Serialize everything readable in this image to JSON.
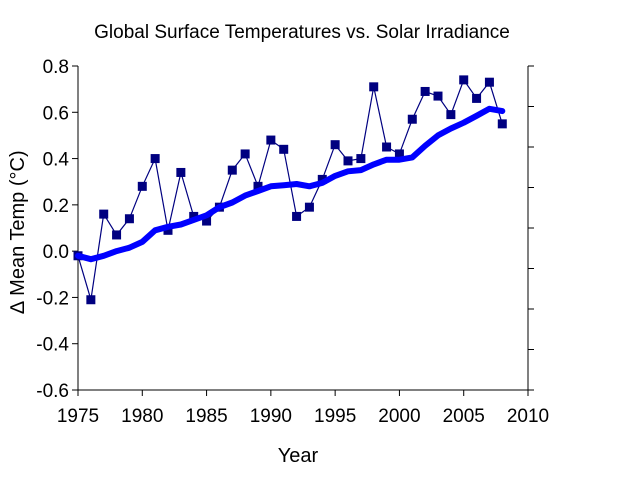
{
  "chart_data": {
    "type": "line",
    "title": "Global Surface Temperatures vs. Solar Irradiance",
    "xlabel": "Year",
    "ylabel": "∆ Mean Temp (°C)",
    "xlim": [
      1975,
      2010
    ],
    "ylim": [
      -0.6,
      0.8
    ],
    "x_ticks": [
      1975,
      1980,
      1985,
      1990,
      1995,
      2000,
      2005,
      2010
    ],
    "y_ticks": [
      -0.6,
      -0.4,
      -0.2,
      0.0,
      0.2,
      0.4,
      0.6,
      0.8
    ],
    "x_tick_labels": [
      "1975",
      "1980",
      "1985",
      "1990",
      "1995",
      "2000",
      "2005",
      "2010"
    ],
    "y_tick_labels": [
      "-0.6",
      "-0.4",
      "-0.2",
      "0.0",
      "0.2",
      "0.4",
      "0.6",
      "0.8"
    ],
    "right_axis_ticks": 9,
    "grid": false,
    "legend": "none",
    "series": [
      {
        "style": "line-with-square-markers",
        "color": "#000080",
        "x": [
          1975,
          1976,
          1977,
          1978,
          1979,
          1980,
          1981,
          1982,
          1983,
          1984,
          1985,
          1986,
          1987,
          1988,
          1989,
          1990,
          1991,
          1992,
          1993,
          1994,
          1995,
          1996,
          1997,
          1998,
          1999,
          2000,
          2001,
          2002,
          2003,
          2004,
          2005,
          2006,
          2007,
          2008
        ],
        "y": [
          -0.02,
          -0.21,
          0.16,
          0.07,
          0.14,
          0.28,
          0.4,
          0.09,
          0.34,
          0.15,
          0.13,
          0.19,
          0.35,
          0.42,
          0.28,
          0.48,
          0.44,
          0.15,
          0.19,
          0.31,
          0.46,
          0.39,
          0.4,
          0.71,
          0.45,
          0.42,
          0.57,
          0.69,
          0.67,
          0.59,
          0.74,
          0.66,
          0.73,
          0.55
        ]
      },
      {
        "style": "thick-smooth-line",
        "color": "#0000ff",
        "x": [
          1975,
          1976,
          1977,
          1978,
          1979,
          1980,
          1981,
          1982,
          1983,
          1984,
          1985,
          1986,
          1987,
          1988,
          1989,
          1990,
          1991,
          1992,
          1993,
          1994,
          1995,
          1996,
          1997,
          1998,
          1999,
          2000,
          2001,
          2002,
          2003,
          2004,
          2005,
          2006,
          2007,
          2008
        ],
        "y": [
          -0.02,
          -0.035,
          -0.02,
          0.0,
          0.015,
          0.04,
          0.09,
          0.105,
          0.115,
          0.135,
          0.155,
          0.19,
          0.21,
          0.24,
          0.26,
          0.28,
          0.285,
          0.29,
          0.28,
          0.295,
          0.325,
          0.345,
          0.35,
          0.375,
          0.395,
          0.395,
          0.405,
          0.455,
          0.5,
          0.53,
          0.555,
          0.585,
          0.615,
          0.605
        ]
      }
    ]
  }
}
